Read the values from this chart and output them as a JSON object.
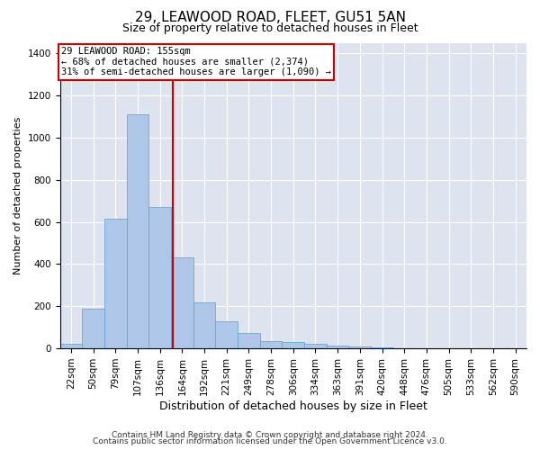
{
  "title1": "29, LEAWOOD ROAD, FLEET, GU51 5AN",
  "title2": "Size of property relative to detached houses in Fleet",
  "xlabel": "Distribution of detached houses by size in Fleet",
  "ylabel": "Number of detached properties",
  "bin_labels": [
    "22sqm",
    "50sqm",
    "79sqm",
    "107sqm",
    "136sqm",
    "164sqm",
    "192sqm",
    "221sqm",
    "249sqm",
    "278sqm",
    "306sqm",
    "334sqm",
    "363sqm",
    "391sqm",
    "420sqm",
    "448sqm",
    "476sqm",
    "505sqm",
    "533sqm",
    "562sqm",
    "590sqm"
  ],
  "bar_values": [
    20,
    190,
    615,
    1110,
    670,
    430,
    220,
    130,
    75,
    35,
    30,
    20,
    15,
    10,
    5,
    0,
    0,
    0,
    0,
    0,
    0
  ],
  "bar_color": "#aec6e8",
  "bar_edgecolor": "#5a9fd4",
  "vline_x": 4.57,
  "vline_color": "#cc0000",
  "annotation_line1": "29 LEAWOOD ROAD: 155sqm",
  "annotation_line2": "← 68% of detached houses are smaller (2,374)",
  "annotation_line3": "31% of semi-detached houses are larger (1,090) →",
  "annotation_box_color": "#cc0000",
  "ylim": [
    0,
    1450
  ],
  "yticks": [
    0,
    200,
    400,
    600,
    800,
    1000,
    1200,
    1400
  ],
  "background_color": "#dde4f0",
  "footer1": "Contains HM Land Registry data © Crown copyright and database right 2024.",
  "footer2": "Contains public sector information licensed under the Open Government Licence v3.0.",
  "title1_fontsize": 11,
  "title2_fontsize": 9,
  "xlabel_fontsize": 9,
  "ylabel_fontsize": 8,
  "tick_fontsize": 7.5,
  "footer_fontsize": 6.5
}
